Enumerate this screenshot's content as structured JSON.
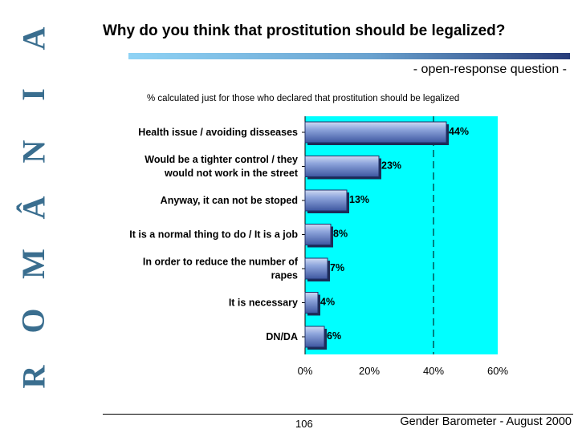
{
  "side_title": [
    "R",
    "O",
    "M",
    "Â",
    "N",
    "I",
    "A"
  ],
  "title": "Why do you think that prostitution should be legalized?",
  "subtitle": "- open-response question -",
  "note": "% calculated just for those who declared that prostitution should be legalized",
  "page_number": "106",
  "source": "Gender Barometer - August 2000",
  "colors": {
    "plot_background": "#00ffff",
    "bar_fill": "#6b87c8",
    "side_title": "#3a6e8f"
  },
  "chart_data": {
    "type": "bar",
    "orientation": "horizontal",
    "categories": [
      [
        "Health issue / avoiding disseases"
      ],
      [
        "Would be a tighter control / they",
        "would not work in the street"
      ],
      [
        "Anyway, it can not be stoped"
      ],
      [
        "It is a normal thing to do / It is a job"
      ],
      [
        "In order to reduce the number of",
        "rapes"
      ],
      [
        "It is necessary"
      ],
      [
        "DN/DA"
      ]
    ],
    "values": [
      44,
      23,
      13,
      8,
      7,
      4,
      6
    ],
    "value_labels": [
      "44%",
      "23%",
      "13%",
      "8%",
      "7%",
      "4%",
      "6%"
    ],
    "xlim": [
      0,
      60
    ],
    "xticks": [
      0,
      20,
      40,
      60
    ],
    "xtick_labels": [
      "0%",
      "20%",
      "40%",
      "60%"
    ],
    "gridline_at": 40
  }
}
